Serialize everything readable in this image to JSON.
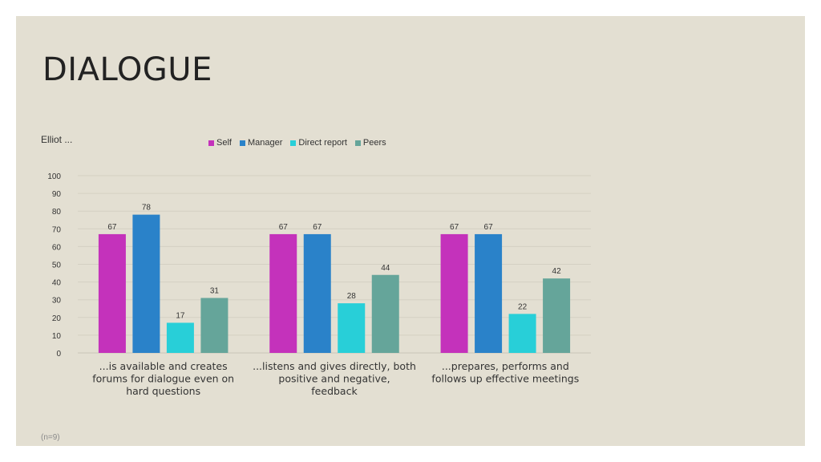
{
  "slide": {
    "title": "DIALOGUE",
    "subtitle": "Elliot ...",
    "footnote": "(n=9)"
  },
  "chart_data": {
    "type": "bar",
    "categories": [
      "...is available and creates forums for dialogue even on hard questions",
      "...listens and gives directly, both positive and negative, feedback",
      "...prepares, performs and follows up effective meetings"
    ],
    "category_lines": [
      [
        "...is available and creates",
        "forums for dialogue even on",
        "hard questions"
      ],
      [
        "...listens and gives directly, both",
        "positive and negative,",
        "feedback"
      ],
      [
        "...prepares, performs and",
        "follows up effective meetings"
      ]
    ],
    "series": [
      {
        "name": "Self",
        "color": "#c432bb",
        "values": [
          67,
          67,
          67
        ]
      },
      {
        "name": "Manager",
        "color": "#2a82c9",
        "values": [
          78,
          67,
          67
        ]
      },
      {
        "name": "Direct report",
        "color": "#28cfd8",
        "values": [
          17,
          28,
          22
        ]
      },
      {
        "name": "Peers",
        "color": "#65a59a",
        "values": [
          31,
          44,
          42
        ]
      }
    ],
    "ylim": [
      0,
      100
    ],
    "yticks": [
      0,
      10,
      20,
      30,
      40,
      50,
      60,
      70,
      80,
      90,
      100
    ],
    "grid": true,
    "legend_position": "top",
    "data_labels": true
  }
}
